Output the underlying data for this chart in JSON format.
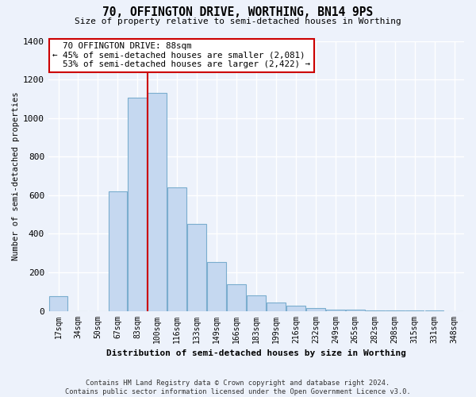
{
  "title": "70, OFFINGTON DRIVE, WORTHING, BN14 9PS",
  "subtitle": "Size of property relative to semi-detached houses in Worthing",
  "xlabel": "Distribution of semi-detached houses by size in Worthing",
  "ylabel": "Number of semi-detached properties",
  "bar_labels": [
    "17sqm",
    "34sqm",
    "50sqm",
    "67sqm",
    "83sqm",
    "100sqm",
    "116sqm",
    "133sqm",
    "149sqm",
    "166sqm",
    "183sqm",
    "199sqm",
    "216sqm",
    "232sqm",
    "249sqm",
    "265sqm",
    "282sqm",
    "298sqm",
    "315sqm",
    "331sqm",
    "348sqm"
  ],
  "bar_values": [
    75,
    0,
    0,
    620,
    1105,
    1130,
    640,
    450,
    255,
    140,
    80,
    45,
    25,
    15,
    8,
    5,
    3,
    2,
    1,
    1,
    0
  ],
  "bar_color": "#c5d8f0",
  "bar_edge_color": "#7aadce",
  "property_size": "88sqm",
  "property_name": "70 OFFINGTON DRIVE",
  "pct_smaller": 45,
  "pct_larger": 53,
  "count_smaller": "2,081",
  "count_larger": "2,422",
  "line_color": "#cc0000",
  "annotation_box_color": "#ffffff",
  "annotation_box_edge": "#cc0000",
  "ylim": [
    0,
    1400
  ],
  "yticks": [
    0,
    200,
    400,
    600,
    800,
    1000,
    1200,
    1400
  ],
  "footer_line1": "Contains HM Land Registry data © Crown copyright and database right 2024.",
  "footer_line2": "Contains public sector information licensed under the Open Government Licence v3.0.",
  "bg_color": "#edf2fb",
  "grid_color": "#d0d8ea",
  "plot_bg_color": "#edf2fb"
}
